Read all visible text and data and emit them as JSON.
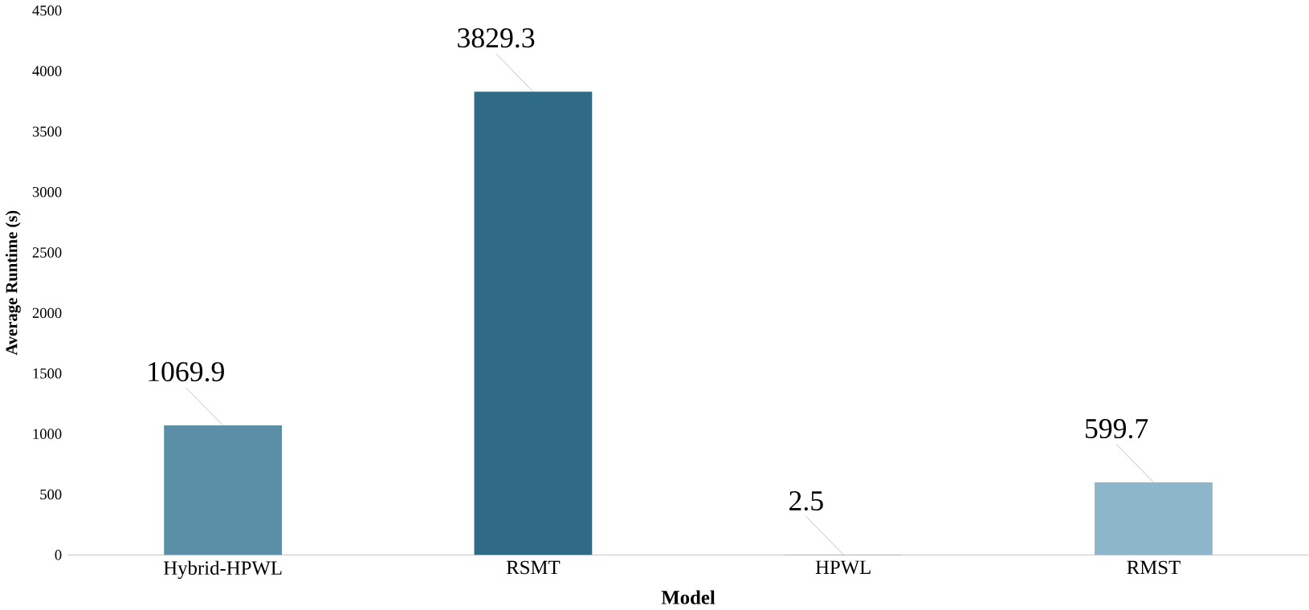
{
  "chart_data": {
    "type": "bar",
    "xlabel": "Model",
    "ylabel": "Average Runtime (s)",
    "categories": [
      "Hybrid-HPWL",
      "RSMT",
      "HPWL",
      "RMST"
    ],
    "values": [
      1069.9,
      3829.3,
      2.5,
      599.7
    ],
    "colors": [
      "#5b8fa8",
      "#2f6b86",
      "#4a7f99",
      "#8db6ca"
    ],
    "ylim": [
      0,
      4500
    ],
    "yticks": [
      0,
      500,
      1000,
      1500,
      2000,
      2500,
      3000,
      3500,
      4000,
      4500
    ],
    "data_labels": true
  }
}
